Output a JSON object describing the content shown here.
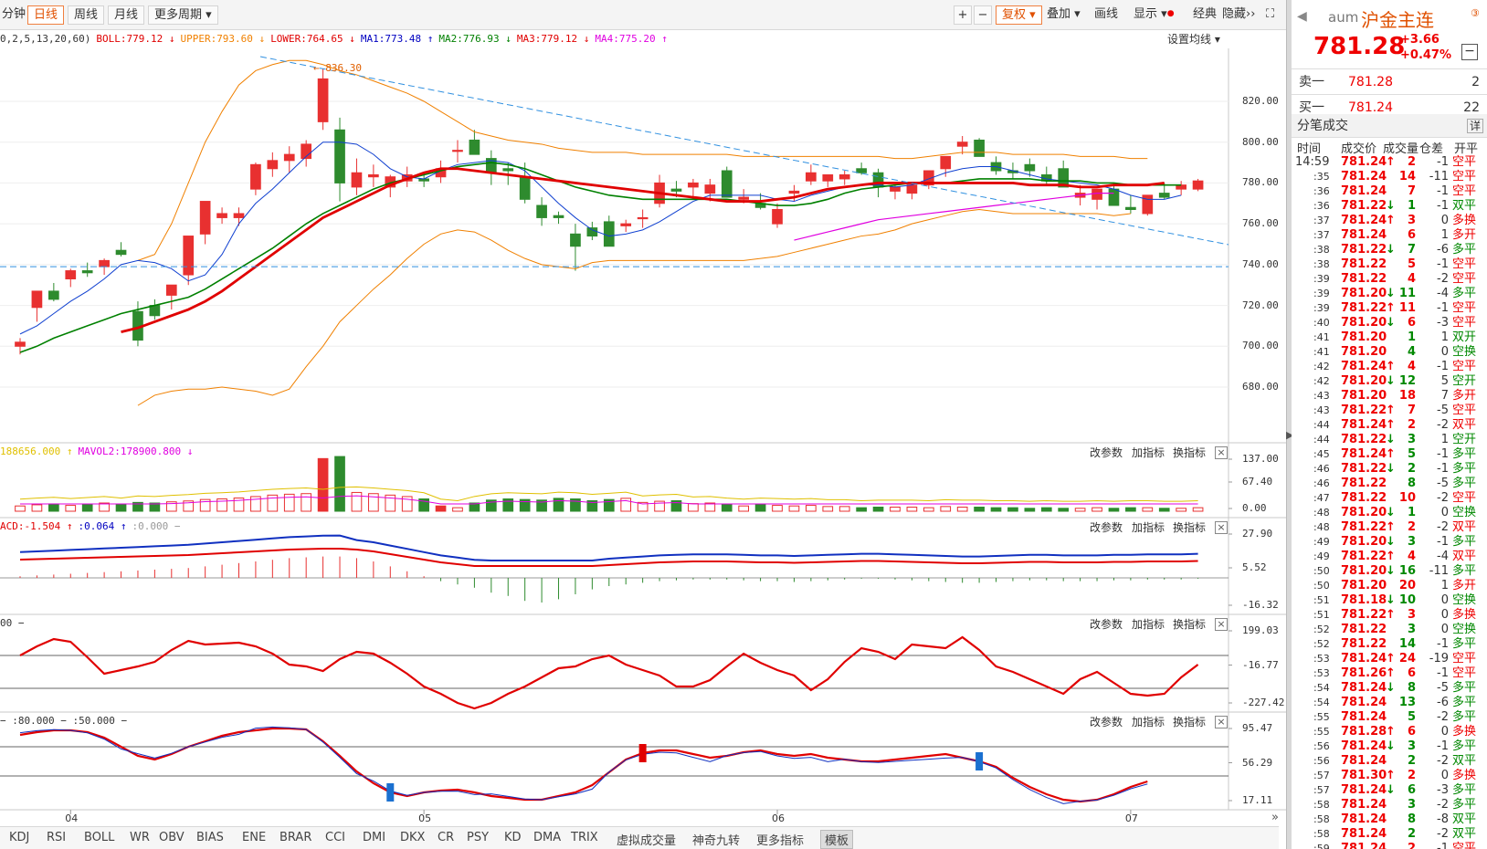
{
  "toolbar": {
    "min_label": "分钟",
    "day": "日线",
    "week": "周线",
    "month": "月线",
    "more_period": "更多周期",
    "plus": "+",
    "minus": "−",
    "fuquan": "复权",
    "overlay": "叠加",
    "draw": "画线",
    "display": "显示",
    "classic": "经典",
    "hide": "隐藏"
  },
  "legend": [
    {
      "text": "0,2,5,13,20,60)",
      "color": "#333333"
    },
    {
      "text": "BOLL:779.12",
      "color": "#e00000",
      "arrow": "↓"
    },
    {
      "text": "UPPER:793.60",
      "color": "#f08000",
      "arrow": "↓"
    },
    {
      "text": "LOWER:764.65",
      "color": "#e00000",
      "arrow": "↓"
    },
    {
      "text": "MA1:773.48",
      "color": "#0000c0",
      "arrow": "↑"
    },
    {
      "text": "MA2:776.93",
      "color": "#008000",
      "arrow": "↓"
    },
    {
      "text": "MA3:779.12",
      "color": "#e00000",
      "arrow": "↓"
    },
    {
      "text": "MA4:775.20",
      "color": "#e000e0",
      "arrow": "↑"
    }
  ],
  "set_ma": "设置均线",
  "peak_label": "836.30",
  "price_axis": [
    "820.00",
    "800.00",
    "780.00",
    "760.00",
    "740.00",
    "720.00",
    "700.00",
    "680.00"
  ],
  "panel_buttons": {
    "params": "改参数",
    "add": "加指标",
    "swap": "换指标",
    "close": "×"
  },
  "vol": {
    "legend": [
      {
        "text": "188656.000",
        "color": "#e0c000",
        "arrow": "↑"
      },
      {
        "text": "MAVOL2:178900.800",
        "color": "#e000e0",
        "arrow": "↓"
      }
    ],
    "axis": [
      "137.00",
      "67.40",
      "0.00"
    ]
  },
  "macd": {
    "legend": [
      {
        "text": "ACD:-1.504",
        "color": "#e00000",
        "arrow": "↑"
      },
      {
        "text": ":0.064",
        "color": "#0000c0",
        "arrow": "↑"
      },
      {
        "text": ":0.000 −",
        "color": "#999999"
      }
    ],
    "axis": [
      "27.90",
      "5.52",
      "-16.32"
    ]
  },
  "cci": {
    "legend": [
      {
        "text": "00 −",
        "color": "#333333"
      }
    ],
    "axis": [
      "199.03",
      "-16.77",
      "-227.42"
    ]
  },
  "kd": {
    "legend": [
      {
        "text": "− :80.000 − :50.000 −",
        "color": "#333333"
      }
    ],
    "axis": [
      "95.47",
      "56.29",
      "17.11"
    ]
  },
  "date_labels": [
    "04",
    "05",
    "06",
    "07"
  ],
  "bottom_tabs": [
    "KDJ",
    "RSI",
    "BOLL",
    "WR",
    "OBV",
    "BIAS",
    "ENE",
    "BRAR",
    "CCI",
    "DMI",
    "DKX",
    "CR",
    "PSY",
    "KD",
    "DMA",
    "TRIX",
    "虚拟成交量",
    "神奇九转",
    "更多指标",
    "模板"
  ],
  "right": {
    "code": "aum",
    "name": "沪金主连",
    "badge": "③",
    "price": "781.28",
    "change": "+3.66",
    "pct": "+0.47%",
    "sell_label": "卖一",
    "sell_price": "781.28",
    "sell_vol": "2",
    "buy_label": "买一",
    "buy_price": "781.24",
    "buy_vol": "22",
    "trades_title": "分笔成交",
    "detail": "详",
    "cols": [
      "时间",
      "成交价",
      "成交量",
      "仓差",
      "开平"
    ],
    "trades": [
      [
        "14:59",
        "781.24",
        "↑",
        "2",
        "-1",
        "空平",
        "r"
      ],
      [
        ":35",
        "781.24",
        "",
        "14",
        "-11",
        "空平",
        "r"
      ],
      [
        ":36",
        "781.24",
        "",
        "7",
        "-1",
        "空平",
        "r"
      ],
      [
        ":36",
        "781.22",
        "↓",
        "1",
        "-1",
        "双平",
        "g"
      ],
      [
        ":37",
        "781.24",
        "↑",
        "3",
        "0",
        "多换",
        "r"
      ],
      [
        ":37",
        "781.24",
        "",
        "6",
        "1",
        "多开",
        "r"
      ],
      [
        ":38",
        "781.22",
        "↓",
        "7",
        "-6",
        "多平",
        "g"
      ],
      [
        ":38",
        "781.22",
        "",
        "5",
        "-1",
        "空平",
        "r"
      ],
      [
        ":39",
        "781.22",
        "",
        "4",
        "-2",
        "空平",
        "r"
      ],
      [
        ":39",
        "781.20",
        "↓",
        "11",
        "-4",
        "多平",
        "g"
      ],
      [
        ":39",
        "781.22",
        "↑",
        "11",
        "-1",
        "空平",
        "r"
      ],
      [
        ":40",
        "781.20",
        "↓",
        "6",
        "-3",
        "空平",
        "r"
      ],
      [
        ":41",
        "781.20",
        "",
        "1",
        "1",
        "双开",
        "g"
      ],
      [
        ":41",
        "781.20",
        "",
        "4",
        "0",
        "空换",
        "g"
      ],
      [
        ":42",
        "781.24",
        "↑",
        "4",
        "-1",
        "空平",
        "r"
      ],
      [
        ":42",
        "781.20",
        "↓",
        "12",
        "5",
        "空开",
        "g"
      ],
      [
        ":43",
        "781.20",
        "",
        "18",
        "7",
        "多开",
        "r"
      ],
      [
        ":43",
        "781.22",
        "↑",
        "7",
        "-5",
        "空平",
        "r"
      ],
      [
        ":44",
        "781.24",
        "↑",
        "2",
        "-2",
        "双平",
        "r"
      ],
      [
        ":44",
        "781.22",
        "↓",
        "3",
        "1",
        "空开",
        "g"
      ],
      [
        ":45",
        "781.24",
        "↑",
        "5",
        "-1",
        "多平",
        "g"
      ],
      [
        ":46",
        "781.22",
        "↓",
        "2",
        "-1",
        "多平",
        "g"
      ],
      [
        ":46",
        "781.22",
        "",
        "8",
        "-5",
        "多平",
        "g"
      ],
      [
        ":47",
        "781.22",
        "",
        "10",
        "-2",
        "空平",
        "r"
      ],
      [
        ":48",
        "781.20",
        "↓",
        "1",
        "0",
        "空换",
        "g"
      ],
      [
        ":48",
        "781.22",
        "↑",
        "2",
        "-2",
        "双平",
        "r"
      ],
      [
        ":49",
        "781.20",
        "↓",
        "3",
        "-1",
        "多平",
        "g"
      ],
      [
        ":49",
        "781.22",
        "↑",
        "4",
        "-4",
        "双平",
        "r"
      ],
      [
        ":50",
        "781.20",
        "↓",
        "16",
        "-11",
        "多平",
        "g"
      ],
      [
        ":50",
        "781.20",
        "",
        "20",
        "1",
        "多开",
        "r"
      ],
      [
        ":51",
        "781.18",
        "↓",
        "10",
        "0",
        "空换",
        "g"
      ],
      [
        ":51",
        "781.22",
        "↑",
        "3",
        "0",
        "多换",
        "r"
      ],
      [
        ":52",
        "781.22",
        "",
        "3",
        "0",
        "空换",
        "g"
      ],
      [
        ":52",
        "781.22",
        "",
        "14",
        "-1",
        "多平",
        "g"
      ],
      [
        ":53",
        "781.24",
        "↑",
        "24",
        "-19",
        "空平",
        "r"
      ],
      [
        ":53",
        "781.26",
        "↑",
        "6",
        "-1",
        "空平",
        "r"
      ],
      [
        ":54",
        "781.24",
        "↓",
        "8",
        "-5",
        "多平",
        "g"
      ],
      [
        ":54",
        "781.24",
        "",
        "13",
        "-6",
        "多平",
        "g"
      ],
      [
        ":55",
        "781.24",
        "",
        "5",
        "-2",
        "多平",
        "g"
      ],
      [
        ":55",
        "781.28",
        "↑",
        "6",
        "0",
        "多换",
        "r"
      ],
      [
        ":56",
        "781.24",
        "↓",
        "3",
        "-1",
        "多平",
        "g"
      ],
      [
        ":56",
        "781.24",
        "",
        "2",
        "-2",
        "双平",
        "g"
      ],
      [
        ":57",
        "781.30",
        "↑",
        "2",
        "0",
        "多换",
        "r"
      ],
      [
        ":57",
        "781.24",
        "↓",
        "6",
        "-3",
        "多平",
        "g"
      ],
      [
        ":58",
        "781.24",
        "",
        "3",
        "-2",
        "多平",
        "g"
      ],
      [
        ":58",
        "781.24",
        "",
        "8",
        "-8",
        "双平",
        "g"
      ],
      [
        ":58",
        "781.24",
        "",
        "2",
        "-2",
        "双平",
        "g"
      ],
      [
        ":59",
        "781.24",
        "",
        "2",
        "-1",
        "空平",
        "r"
      ]
    ]
  },
  "colors": {
    "up": "#e83030",
    "down": "#2e8b2e",
    "upper": "#f08000",
    "ma1": "#1040d0",
    "ma2": "#008000",
    "ma3": "#e00000",
    "ma4": "#e000e0"
  }
}
